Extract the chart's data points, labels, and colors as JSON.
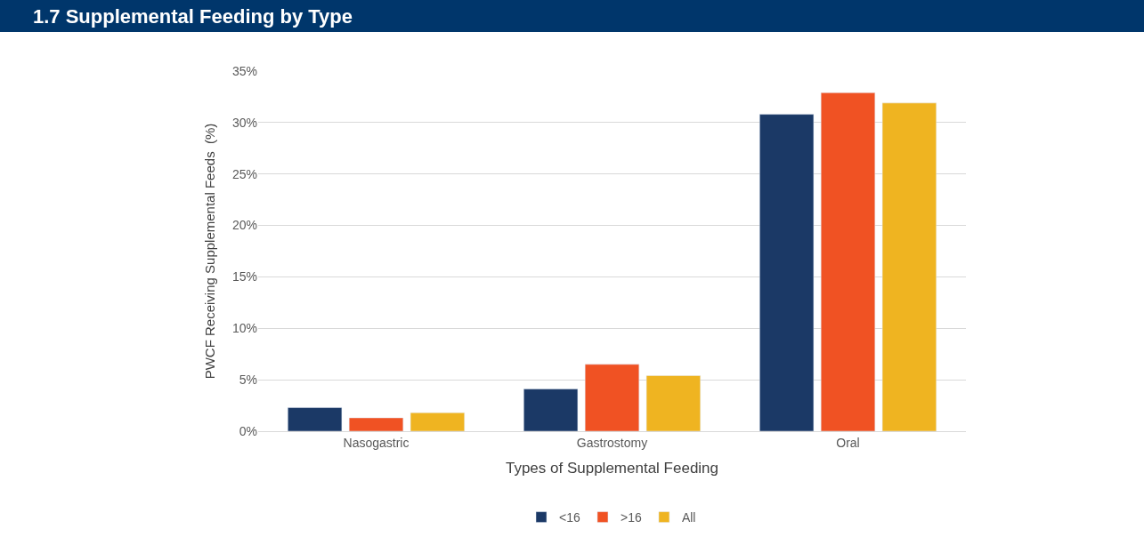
{
  "chart_data": {
    "type": "bar",
    "title": "1.7 Supplemental Feeding by Type",
    "xlabel": "Types of Supplemental Feeding",
    "ylabel": "PWCF Receiving Supplemental Feeds  (%)",
    "categories": [
      "Nasogastric",
      "Gastrostomy",
      "Oral"
    ],
    "series": [
      {
        "name": "<16",
        "color": "#1b3966",
        "values": [
          2.3,
          4.1,
          30.8
        ]
      },
      {
        "name": ">16",
        "color": "#f05223",
        "values": [
          1.3,
          6.5,
          32.9
        ]
      },
      {
        "name": "All",
        "color": "#efb421",
        "values": [
          1.8,
          5.4,
          31.9
        ]
      }
    ],
    "ylim": [
      0,
      35
    ],
    "yticks": [
      {
        "value": 0,
        "label": "0%"
      },
      {
        "value": 5,
        "label": "5%"
      },
      {
        "value": 10,
        "label": "10%"
      },
      {
        "value": 15,
        "label": "15%"
      },
      {
        "value": 20,
        "label": "20%"
      },
      {
        "value": 25,
        "label": "25%"
      },
      {
        "value": 30,
        "label": "30%"
      },
      {
        "value": 35,
        "label": "35%"
      }
    ],
    "grid": "y",
    "legend": "bottom"
  }
}
